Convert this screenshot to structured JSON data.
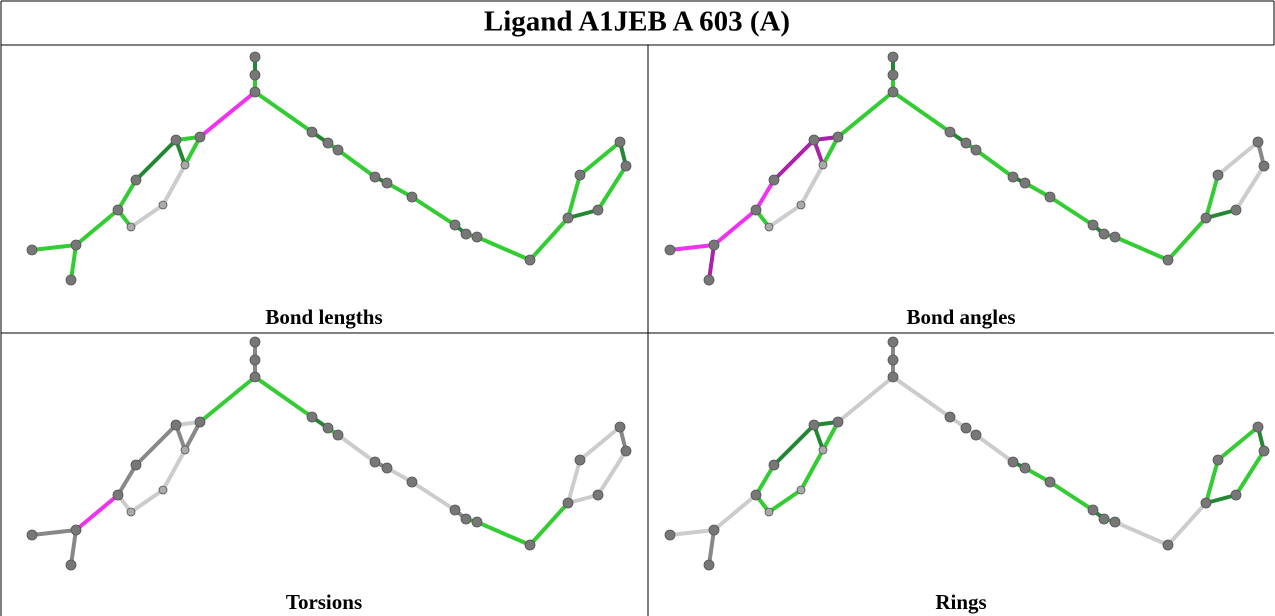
{
  "title": "Ligand A1JEB A 603 (A)",
  "panels": [
    {
      "label": "Bond lengths"
    },
    {
      "label": "Bond angles"
    },
    {
      "label": "Torsions"
    },
    {
      "label": "Rings"
    }
  ]
}
